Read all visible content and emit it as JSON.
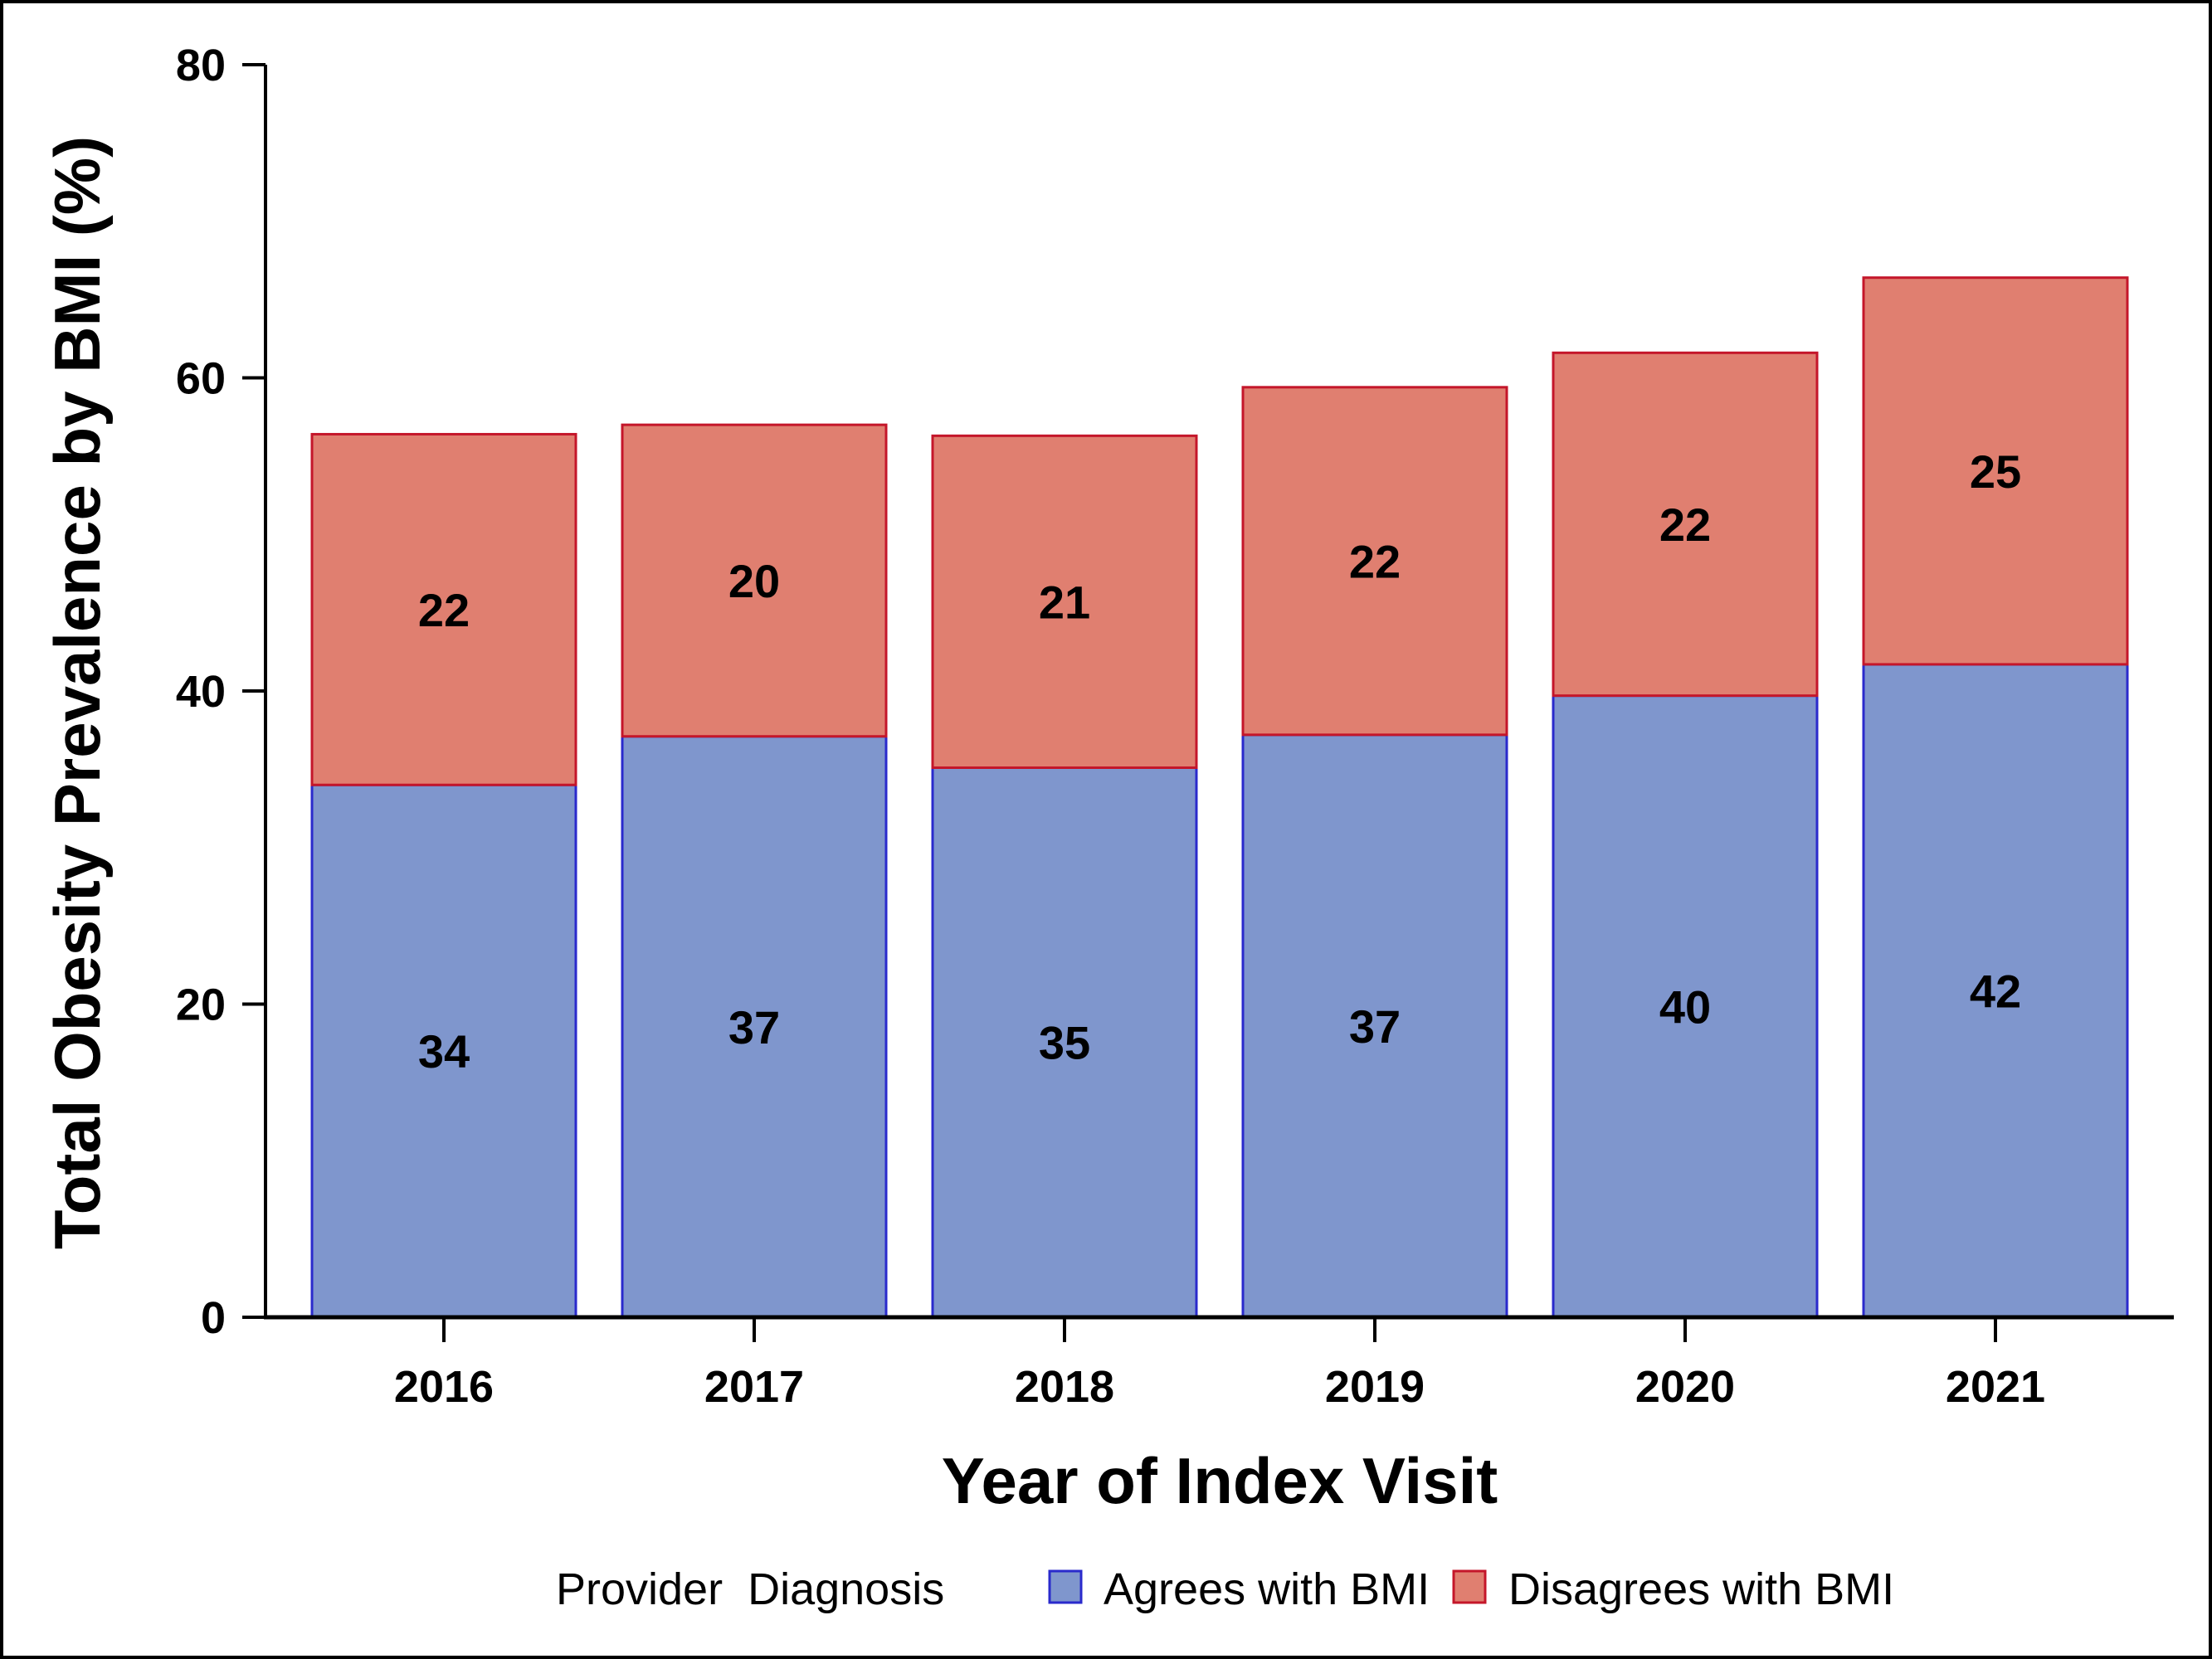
{
  "chart_data": {
    "type": "bar",
    "stacked": true,
    "categories": [
      "2016",
      "2017",
      "2018",
      "2019",
      "2020",
      "2021"
    ],
    "series": [
      {
        "name": "Agrees with BMI",
        "values": [
          34,
          37,
          35,
          37,
          40,
          42
        ],
        "labels": [
          "34",
          "37",
          "35",
          "37",
          "40",
          "42"
        ],
        "color": "#7F96CD",
        "edge": "#2A2ACC"
      },
      {
        "name": "Disagrees with BMI",
        "values": [
          22,
          20,
          21,
          22,
          22,
          25
        ],
        "labels": [
          "22",
          "20",
          "21",
          "22",
          "22",
          "25"
        ],
        "color": "#E07F70",
        "edge": "#C4162A"
      }
    ],
    "stack_totals": [
      56.4,
      57.0,
      56.3,
      59.4,
      61.6,
      66.4
    ],
    "agree_values_exact": [
      34.0,
      37.1,
      35.1,
      37.2,
      39.7,
      41.7
    ],
    "xlabel": "Year of Index Visit",
    "ylabel": "Total Obesity Prevalence by BMI (%)",
    "ylim": [
      0,
      80
    ],
    "yticks": [
      0,
      20,
      40,
      60,
      80
    ],
    "ytick_labels": [
      "0",
      "20",
      "40",
      "60",
      "80"
    ],
    "grid": false,
    "legend": {
      "title": "Provider  Diagnosis",
      "placement": "bottom",
      "entries": [
        "Agrees with BMI",
        "Disagrees with BMI"
      ]
    }
  }
}
